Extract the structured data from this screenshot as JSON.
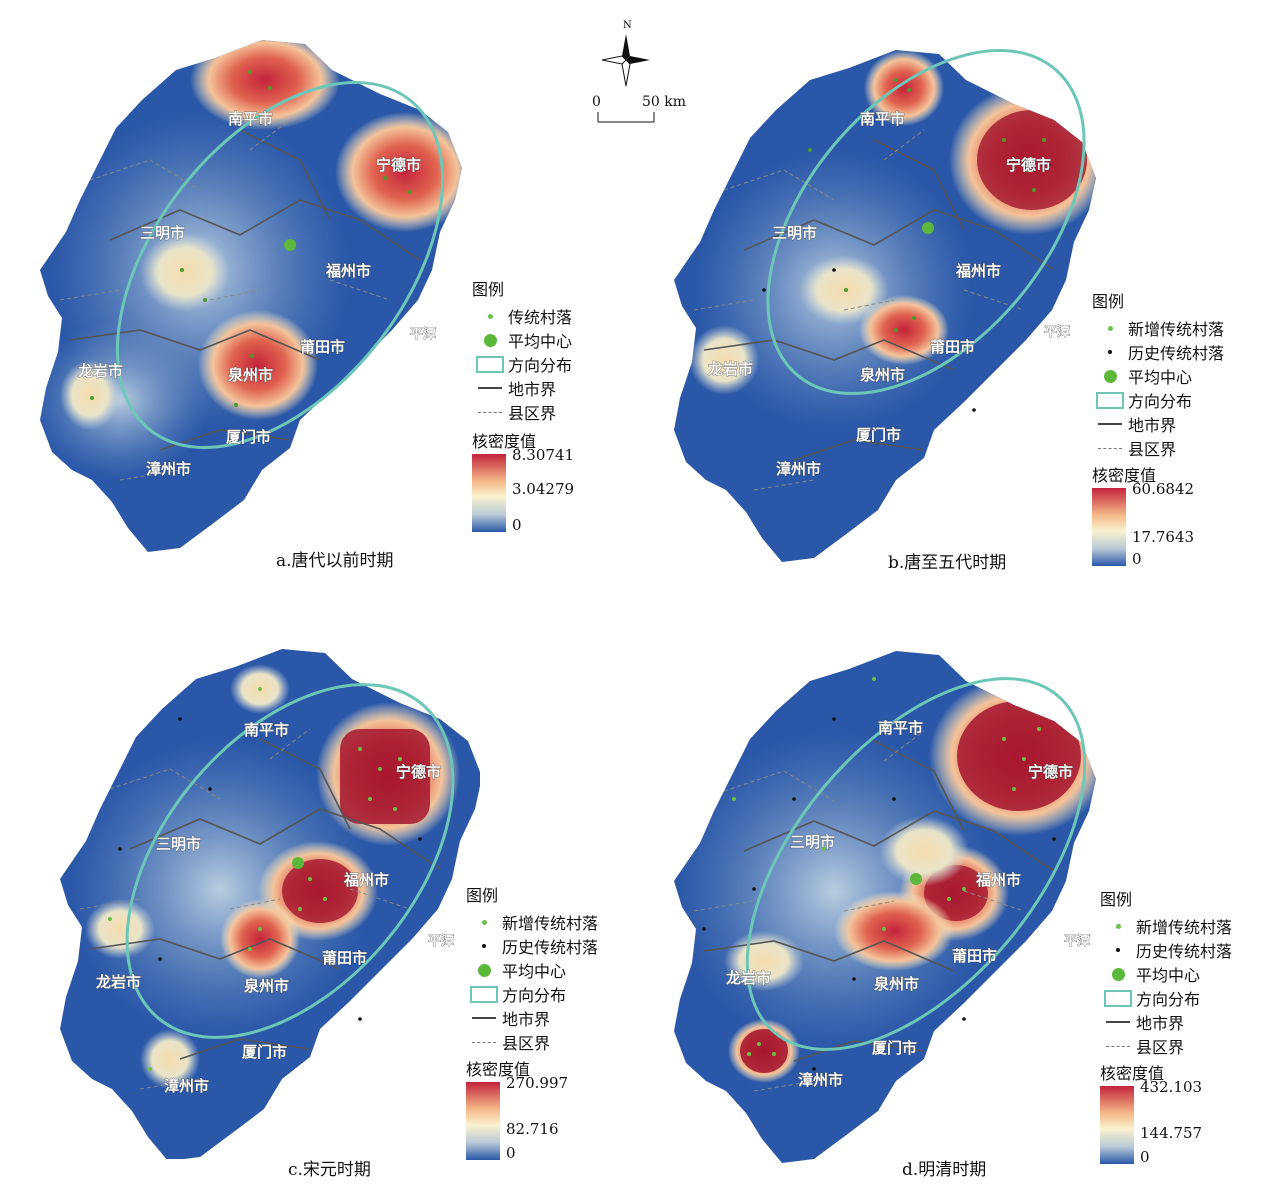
{
  "compass": {
    "north_label": "N"
  },
  "scalebar": {
    "zero": "0",
    "distance": "50 km"
  },
  "colors": {
    "low": "#2a57a8",
    "mid": "#fbf2cf",
    "high": "#c4233b",
    "point_new": "#6cc04a",
    "point_hist": "#111111",
    "ellipse": "#6cc7b8"
  },
  "panels": [
    {
      "caption": "a.唐代以前时期",
      "legend": {
        "title": "图例",
        "items": [
          "传统村落",
          "平均中心",
          "方向分布",
          "地市界",
          "县区界"
        ],
        "ramp_title": "核密度值",
        "ramp_max": "8.30741",
        "ramp_mid": "3.04279",
        "ramp_min": "0"
      },
      "cities": [
        "南平市",
        "宁德市",
        "三明市",
        "福州市",
        "平潭",
        "莆田市",
        "龙岩市",
        "泉州市",
        "厦门市",
        "漳州市"
      ]
    },
    {
      "caption": "b.唐至五代时期",
      "legend": {
        "title": "图例",
        "items": [
          "新增传统村落",
          "历史传统村落",
          "平均中心",
          "方向分布",
          "地市界",
          "县区界"
        ],
        "ramp_title": "核密度值",
        "ramp_max": "60.6842",
        "ramp_mid": "17.7643",
        "ramp_min": "0"
      },
      "cities": [
        "南平市",
        "宁德市",
        "三明市",
        "福州市",
        "平潭",
        "莆田市",
        "龙岩市",
        "泉州市",
        "厦门市",
        "漳州市"
      ]
    },
    {
      "caption": "c.宋元时期",
      "legend": {
        "title": "图例",
        "items": [
          "新增传统村落",
          "历史传统村落",
          "平均中心",
          "方向分布",
          "地市界",
          "县区界"
        ],
        "ramp_title": "核密度值",
        "ramp_max": "270.997",
        "ramp_mid": "82.716",
        "ramp_min": "0"
      },
      "cities": [
        "南平市",
        "宁德市",
        "三明市",
        "福州市",
        "平潭",
        "莆田市",
        "龙岩市",
        "泉州市",
        "厦门市",
        "漳州市"
      ]
    },
    {
      "caption": "d.明清时期",
      "legend": {
        "title": "图例",
        "items": [
          "新增传统村落",
          "历史传统村落",
          "平均中心",
          "方向分布",
          "地市界",
          "县区界"
        ],
        "ramp_title": "核密度值",
        "ramp_max": "432.103",
        "ramp_mid": "144.757",
        "ramp_min": "0"
      },
      "cities": [
        "南平市",
        "宁德市",
        "三明市",
        "福州市",
        "平潭",
        "莆田市",
        "龙岩市",
        "泉州市",
        "厦门市",
        "漳州市"
      ]
    }
  ]
}
